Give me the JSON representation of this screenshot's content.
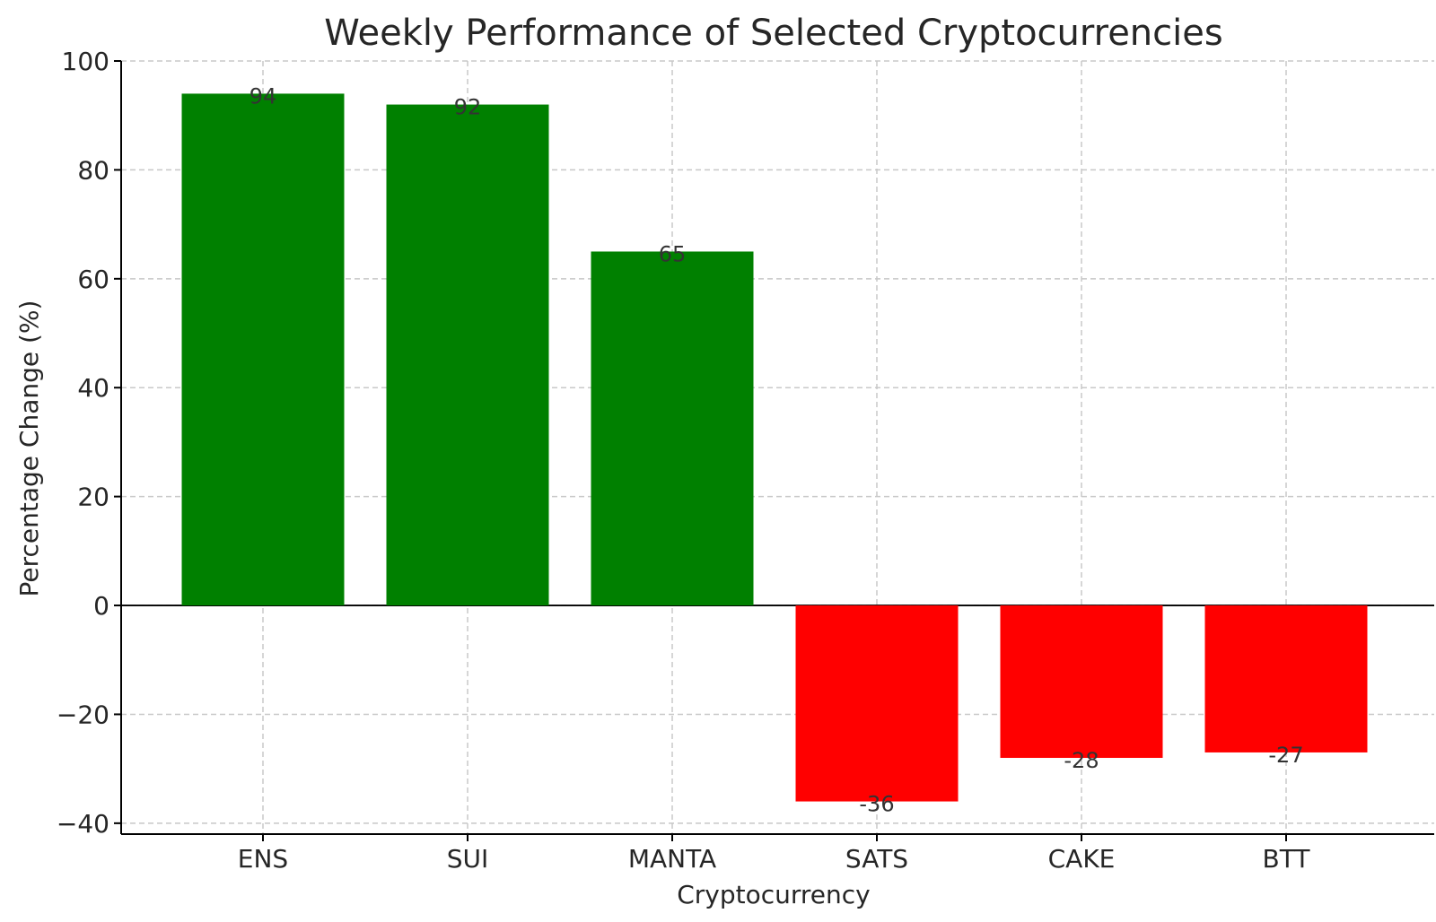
{
  "chart_data": {
    "type": "bar",
    "title": "Weekly Performance of Selected Cryptocurrencies",
    "xlabel": "Cryptocurrency",
    "ylabel": "Percentage Change (%)",
    "categories": [
      "ENS",
      "SUI",
      "MANTA",
      "SATS",
      "CAKE",
      "BTT"
    ],
    "values": [
      94,
      92,
      65,
      -36,
      -28,
      -27
    ],
    "data_labels": [
      "94",
      "92",
      "65",
      "-36",
      "-28",
      "-27"
    ],
    "ylim": [
      -42,
      100
    ],
    "yticks": [
      -40,
      -20,
      0,
      20,
      40,
      60,
      80,
      100
    ],
    "ytick_labels": [
      "−40",
      "−20",
      "0",
      "20",
      "40",
      "60",
      "80",
      "100"
    ],
    "grid": true,
    "zero_line": true,
    "colors": {
      "positive": "#008000",
      "negative": "#ff0000"
    }
  }
}
